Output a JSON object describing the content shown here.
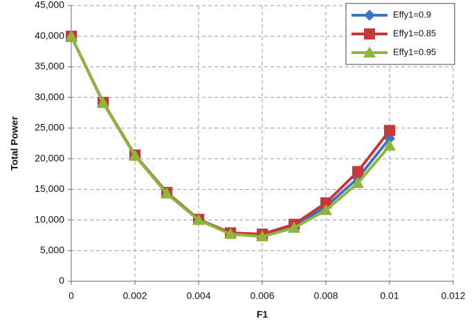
{
  "chart_data": {
    "type": "line",
    "x_label": "F1",
    "y_label": "Total Power",
    "x": [
      0,
      0.001,
      0.002,
      0.003,
      0.004,
      0.005,
      0.006,
      0.007,
      0.008,
      0.009,
      0.01
    ],
    "series": [
      {
        "name": "Effy1=0.9",
        "color": "#3a75c4",
        "marker": "diamond",
        "values": [
          40000,
          29200,
          20500,
          14400,
          10000,
          7800,
          7500,
          9000,
          12200,
          16800,
          23300
        ]
      },
      {
        "name": "Effy1=0.85",
        "color": "#c8373a",
        "marker": "square",
        "values": [
          40000,
          29200,
          20600,
          14500,
          10100,
          7900,
          7700,
          9300,
          12800,
          17900,
          24600
        ]
      },
      {
        "name": "Effy1=0.95",
        "color": "#8db63c",
        "marker": "triangle",
        "values": [
          40000,
          29100,
          20500,
          14300,
          10000,
          7700,
          7300,
          8700,
          11600,
          16000,
          22100
        ]
      }
    ],
    "xlim": [
      0,
      0.012
    ],
    "xticks": [
      0,
      0.002,
      0.004,
      0.006,
      0.008,
      0.01,
      0.012
    ],
    "ylim": [
      0,
      45000
    ],
    "yticks": [
      0,
      {
        "value": 5000,
        "label": "5,000"
      },
      {
        "value": 10000,
        "label": "10,000"
      },
      {
        "value": 15000,
        "label": "15,000"
      },
      {
        "value": 20000,
        "label": "20,000"
      },
      {
        "value": 25000,
        "label": "25,000"
      },
      {
        "value": 30000,
        "label": "30,000"
      },
      {
        "value": 35000,
        "label": "35,000"
      },
      {
        "value": 40000,
        "label": "40,000"
      },
      {
        "value": 45000,
        "label": "45,000"
      }
    ],
    "grid": true,
    "legend": "top-right"
  }
}
